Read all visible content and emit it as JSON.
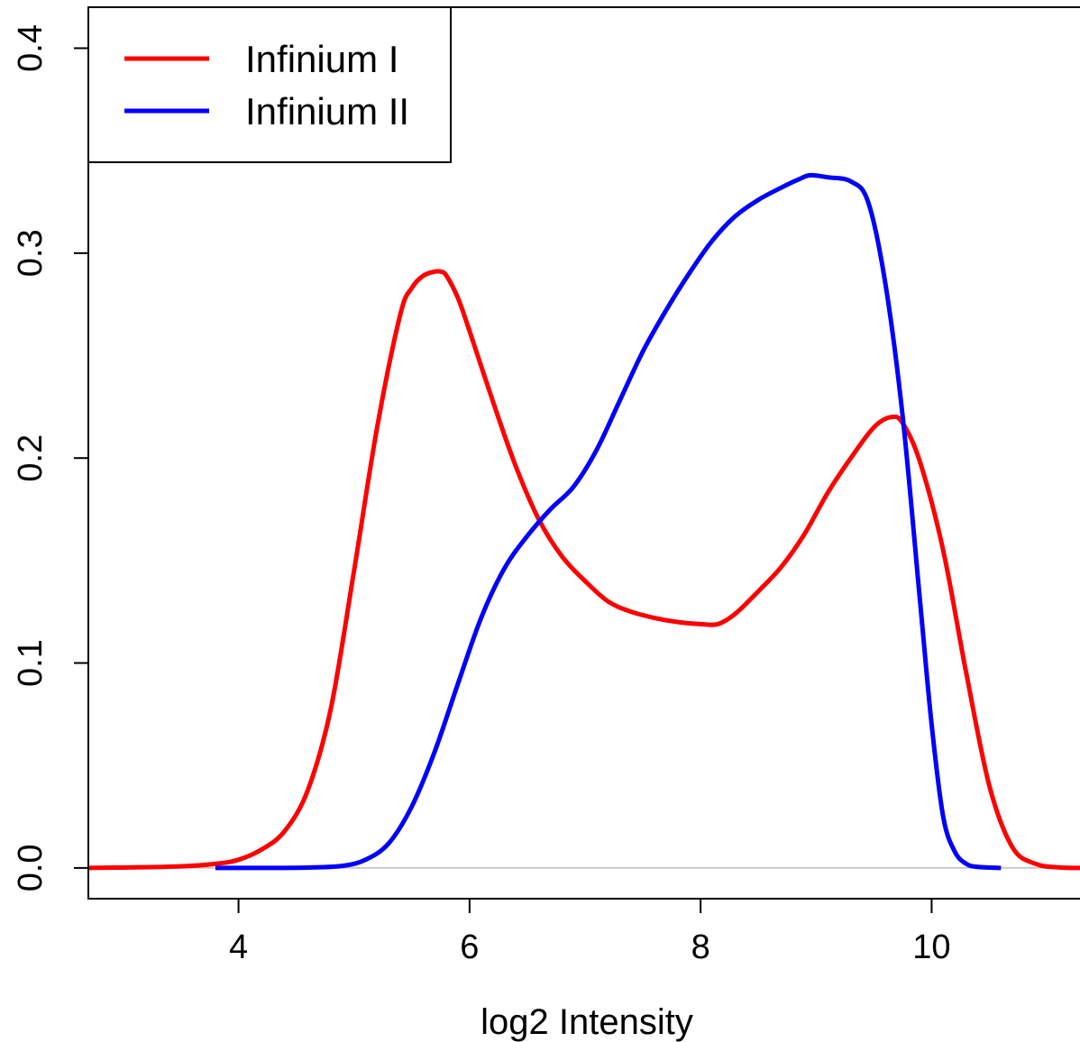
{
  "chart_data": {
    "type": "line",
    "title": "",
    "xlabel": "log2 Intensity",
    "ylabel": "",
    "xlim": [
      2.7,
      11.3
    ],
    "ylim": [
      -0.015,
      0.42
    ],
    "x_ticks": [
      4,
      6,
      8,
      10
    ],
    "x_tick_labels": [
      "4",
      "6",
      "8",
      "10"
    ],
    "y_ticks": [
      0.0,
      0.1,
      0.2,
      0.3,
      0.4
    ],
    "y_tick_labels": [
      "0.0",
      "0.1",
      "0.2",
      "0.3",
      "0.4"
    ],
    "baseline": 0,
    "legend_position": "top-left",
    "series": [
      {
        "name": "Infinium I",
        "color": "#ff0000",
        "x": [
          2.7,
          3.0,
          3.5,
          3.8,
          4.0,
          4.2,
          4.4,
          4.6,
          4.8,
          5.0,
          5.2,
          5.4,
          5.5,
          5.6,
          5.7,
          5.75,
          5.8,
          5.9,
          6.0,
          6.2,
          6.4,
          6.6,
          6.8,
          7.0,
          7.2,
          7.4,
          7.6,
          7.8,
          8.0,
          8.15,
          8.3,
          8.5,
          8.7,
          8.9,
          9.1,
          9.3,
          9.5,
          9.65,
          9.75,
          9.9,
          10.1,
          10.3,
          10.5,
          10.7,
          10.9,
          11.1,
          11.3
        ],
        "y": [
          0.0,
          0.0002,
          0.0008,
          0.002,
          0.004,
          0.009,
          0.018,
          0.038,
          0.078,
          0.145,
          0.215,
          0.27,
          0.283,
          0.289,
          0.291,
          0.291,
          0.289,
          0.278,
          0.262,
          0.228,
          0.196,
          0.17,
          0.152,
          0.14,
          0.13,
          0.125,
          0.122,
          0.12,
          0.119,
          0.119,
          0.124,
          0.135,
          0.147,
          0.163,
          0.183,
          0.2,
          0.215,
          0.22,
          0.217,
          0.198,
          0.155,
          0.095,
          0.04,
          0.01,
          0.002,
          0.0003,
          0.0
        ]
      },
      {
        "name": "Infinium II",
        "color": "#0000ff",
        "x": [
          3.8,
          4.2,
          4.6,
          4.9,
          5.1,
          5.3,
          5.5,
          5.7,
          5.9,
          6.1,
          6.3,
          6.5,
          6.7,
          6.9,
          7.1,
          7.3,
          7.5,
          7.7,
          7.9,
          8.1,
          8.3,
          8.5,
          8.7,
          8.85,
          8.95,
          9.1,
          9.3,
          9.45,
          9.6,
          9.75,
          9.9,
          10.0,
          10.1,
          10.2,
          10.3,
          10.4,
          10.6
        ],
        "y": [
          0.0,
          0.0,
          0.0002,
          0.001,
          0.004,
          0.012,
          0.03,
          0.057,
          0.09,
          0.122,
          0.146,
          0.162,
          0.175,
          0.186,
          0.204,
          0.228,
          0.252,
          0.272,
          0.29,
          0.306,
          0.318,
          0.326,
          0.332,
          0.336,
          0.338,
          0.337,
          0.335,
          0.325,
          0.285,
          0.22,
          0.13,
          0.07,
          0.025,
          0.008,
          0.002,
          0.0005,
          0.0
        ]
      }
    ]
  }
}
